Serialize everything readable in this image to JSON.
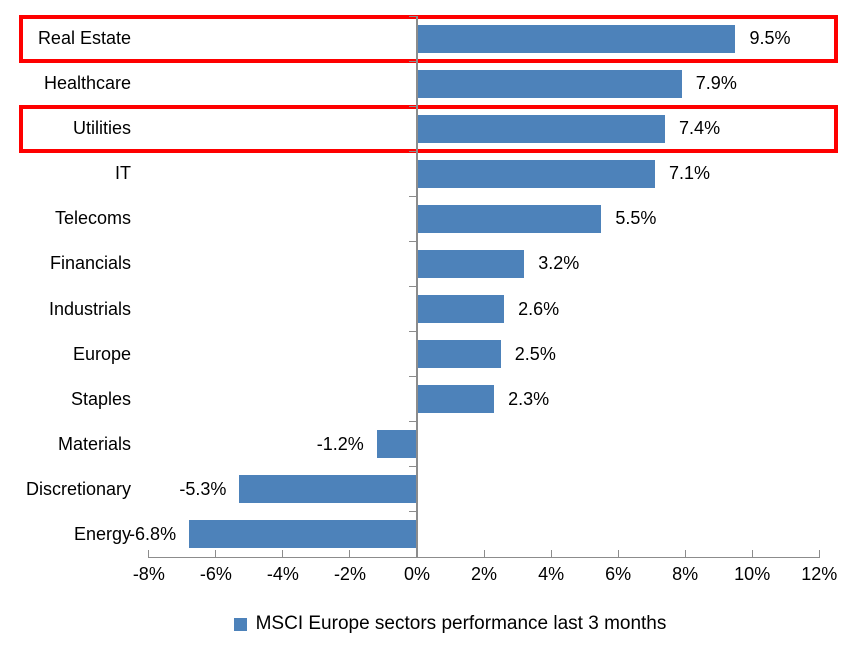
{
  "chart_data": {
    "type": "bar",
    "orientation": "horizontal",
    "title": "",
    "categories": [
      "Real Estate",
      "Healthcare",
      "Utilities",
      "IT",
      "Telecoms",
      "Financials",
      "Industrials",
      "Europe",
      "Staples",
      "Materials",
      "Discretionary",
      "Energy"
    ],
    "values": [
      9.5,
      7.9,
      7.4,
      7.1,
      5.5,
      3.2,
      2.6,
      2.5,
      2.3,
      -1.2,
      -5.3,
      -6.8
    ],
    "data_labels": [
      "9.5%",
      "7.9%",
      "7.4%",
      "7.1%",
      "5.5%",
      "3.2%",
      "2.6%",
      "2.5%",
      "2.3%",
      "-1.2%",
      "-5.3%",
      "-6.8%"
    ],
    "xlabel": "",
    "ylabel": "",
    "xlim": [
      -8,
      12
    ],
    "x_ticks": [
      -8,
      -6,
      -4,
      -2,
      0,
      2,
      4,
      6,
      8,
      10,
      12
    ],
    "x_tick_labels": [
      "-8%",
      "-6%",
      "-4%",
      "-2%",
      "0%",
      "2%",
      "4%",
      "6%",
      "8%",
      "10%",
      "12%"
    ],
    "grid": false,
    "legend_position": "bottom",
    "legend_entries": [
      "MSCI Europe sectors performance last 3 months"
    ],
    "highlighted_categories": [
      "Real Estate",
      "Utilities"
    ],
    "colors": {
      "bar": "#4d82ba",
      "highlight_box": "#fe0000",
      "axis": "#8c8c8c",
      "text": "#000000"
    }
  },
  "legend": {
    "label": "MSCI Europe sectors performance last 3 months"
  }
}
